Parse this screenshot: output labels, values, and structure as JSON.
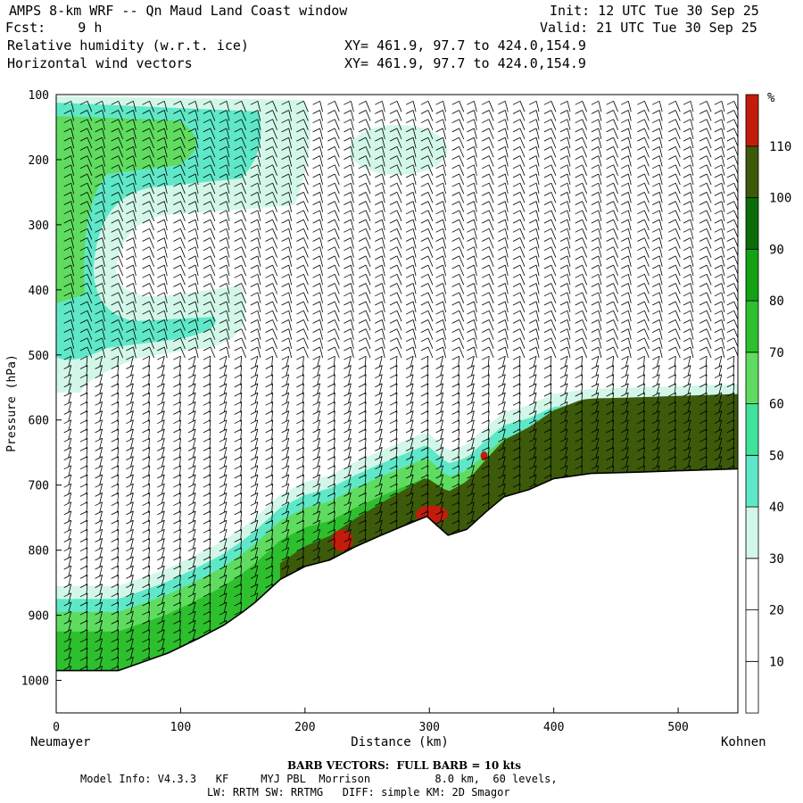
{
  "header": {
    "line1_left": "AMPS 8-km WRF -- Qn Maud Land Coast window",
    "line1_right": "Init: 12 UTC Tue 30 Sep 25",
    "line2_left": "Fcst:    9 h",
    "line2_right": "Valid: 21 UTC Tue 30 Sep 25",
    "line3_left": "Relative humidity (w.r.t. ice)",
    "line3_right": "XY= 461.9, 97.7 to 424.0,154.9",
    "line4_left": "Horizontal wind vectors",
    "line4_right": "XY= 461.9, 97.7 to 424.0,154.9"
  },
  "footer": {
    "barb_note": "BARB VECTORS:  FULL BARB = 10 kts",
    "model_line": "Model Info: V4.3.3   KF     MYJ PBL  Morrison          8.0 km,  60 levels,",
    "physics_line": "LW: RRTM SW: RRTMG   DIFF: simple KM: 2D Smagor"
  },
  "chart_data": {
    "type": "heatmap",
    "title": "Relative humidity (w.r.t. ice)",
    "xlabel": "Distance (km)",
    "ylabel": "Pressure (hPa)",
    "xlim": [
      0,
      548
    ],
    "ylim": [
      1050,
      100
    ],
    "x_ticks": [
      0,
      100,
      200,
      300,
      400,
      500
    ],
    "y_ticks": [
      100,
      200,
      300,
      400,
      500,
      600,
      700,
      800,
      900,
      1000
    ],
    "x_end_labels": {
      "left": "Neumayer",
      "right": "Kohnen"
    },
    "terrain_surface": {
      "x": [
        0,
        50,
        65,
        90,
        115,
        135,
        150,
        160,
        180,
        200,
        220,
        240,
        260,
        280,
        298,
        305,
        315,
        330,
        345,
        360,
        380,
        400,
        430,
        470,
        500,
        548
      ],
      "p": [
        985,
        985,
        975,
        958,
        935,
        915,
        895,
        880,
        845,
        825,
        815,
        795,
        778,
        762,
        748,
        760,
        777,
        768,
        742,
        718,
        707,
        690,
        682,
        680,
        678,
        675
      ]
    },
    "colorbar": {
      "unit": "%",
      "labels": [
        10,
        20,
        30,
        40,
        50,
        60,
        70,
        80,
        90,
        100,
        110
      ],
      "colors": [
        "#ffffff",
        "#ffffff",
        "#ffffff",
        "#d2f7e8",
        "#5fe8c8",
        "#3fe39a",
        "#5fdc5f",
        "#2ebf2e",
        "#14a114",
        "#0a6d0a",
        "#3c5a0a",
        "#c41c0c"
      ]
    },
    "barb_columns_km": [
      12,
      25,
      37,
      50,
      62,
      75,
      87,
      100,
      112,
      124,
      137,
      149,
      162,
      174,
      187,
      199,
      212,
      224,
      237,
      249,
      262,
      274,
      287,
      299,
      311,
      324,
      336,
      348,
      361,
      373,
      386,
      398,
      411,
      423,
      436,
      448,
      460,
      473,
      485,
      498,
      510,
      523,
      535,
      545
    ]
  }
}
